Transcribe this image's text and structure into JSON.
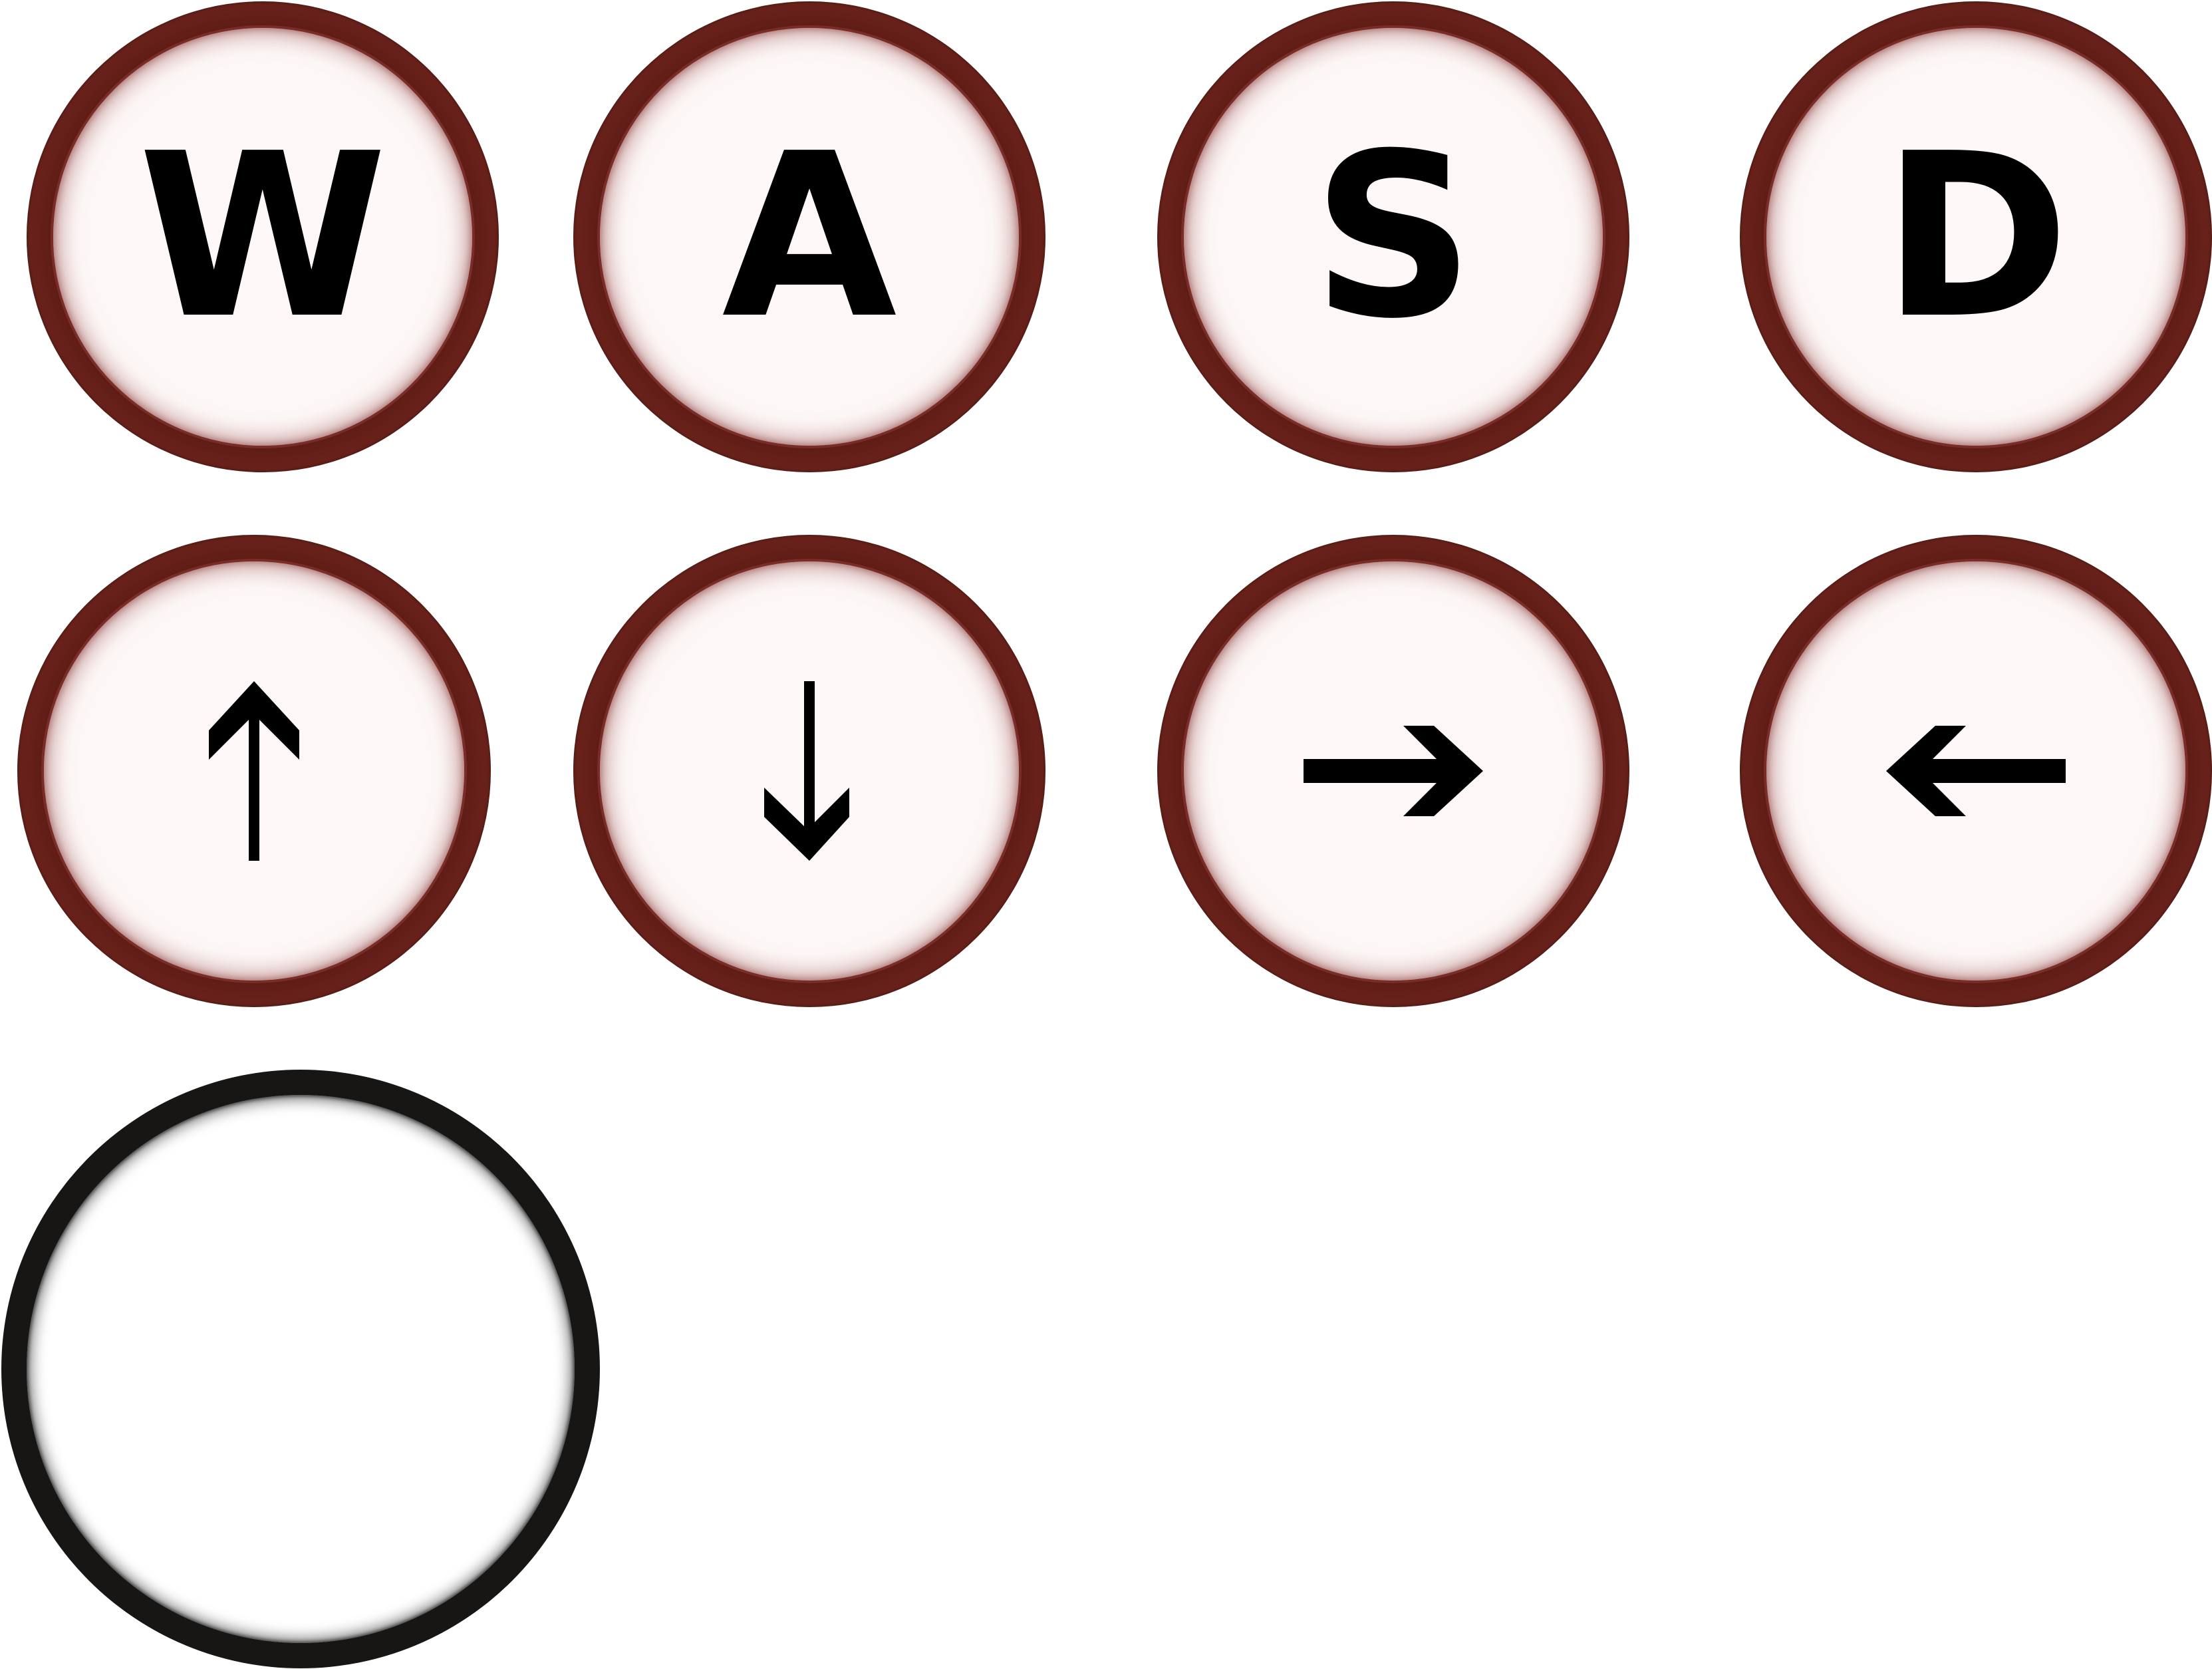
{
  "keys": {
    "w": {
      "label": "W",
      "icon": "letter-w"
    },
    "a": {
      "label": "A",
      "icon": "letter-a"
    },
    "s": {
      "label": "S",
      "icon": "letter-s"
    },
    "d": {
      "label": "D",
      "icon": "letter-d"
    },
    "up": {
      "icon": "arrow-up-icon"
    },
    "down": {
      "icon": "arrow-down-icon"
    },
    "right": {
      "icon": "arrow-right-icon"
    },
    "left": {
      "icon": "arrow-left-icon"
    },
    "blank": {
      "icon": "blank-key"
    }
  },
  "colors": {
    "key_rim": "#5a1a14",
    "key_face": "#fdf8f7",
    "glyph": "#000000",
    "blank_rim": "#171614",
    "blank_face": "#ffffff"
  }
}
